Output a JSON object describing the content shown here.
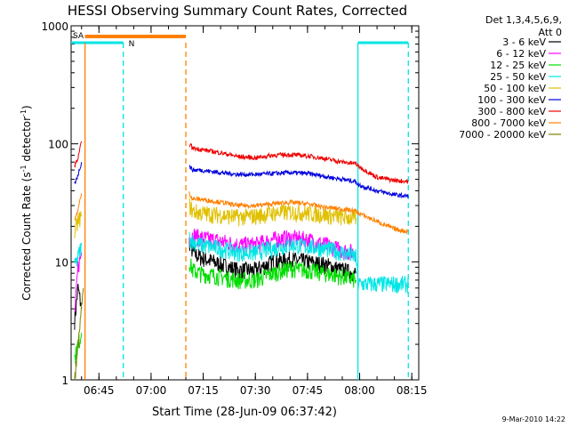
{
  "chart_data": {
    "type": "line",
    "title": "HESSI Observing Summary Count Rates, Corrected",
    "xlabel": "Start Time (28-Jun-09 06:37:42)",
    "ylabel_main": "Corrected Count Rate (s",
    "ylabel_sup1": "-1",
    "ylabel_mid": " detector",
    "ylabel_sup2": "-1",
    "ylabel_end": ")",
    "y_scale": "log",
    "ylim": [
      1,
      1000
    ],
    "xlim": [
      "06:37:42",
      "08:17:00"
    ],
    "x_ticks": [
      "06:45",
      "07:00",
      "07:15",
      "07:30",
      "07:45",
      "08:00",
      "08:15"
    ],
    "y_ticks": [
      "1",
      "10",
      "100",
      "1000"
    ],
    "grid": false,
    "legend_position": "right",
    "legend_header": [
      "Det 1,3,4,5,6,9,",
      "Att 0"
    ],
    "flags": {
      "saa_label": "SA",
      "night_label": "N"
    },
    "footer_date": "9-Mar-2010 14:22",
    "series": [
      {
        "name": "3 - 6 keV",
        "color": "#000000",
        "points": [
          [
            "06:38",
            3.2
          ],
          [
            "06:39",
            6
          ],
          [
            "06:40",
            4
          ],
          [
            "07:11",
            15
          ],
          [
            "07:12",
            12
          ],
          [
            "07:14",
            11
          ],
          [
            "07:20",
            9.5
          ],
          [
            "07:25",
            8.5
          ],
          [
            "07:30",
            8.5
          ],
          [
            "07:35",
            10
          ],
          [
            "07:40",
            10.5
          ],
          [
            "07:45",
            10
          ],
          [
            "07:50",
            9.5
          ],
          [
            "07:55",
            8.5
          ],
          [
            "07:59",
            8
          ]
        ]
      },
      {
        "name": "6 - 12 keV",
        "color": "#ff00ff",
        "points": [
          [
            "06:38",
            3.5
          ],
          [
            "06:39",
            9
          ],
          [
            "06:40",
            12
          ],
          [
            "07:11",
            16
          ],
          [
            "07:12",
            17
          ],
          [
            "07:14",
            16
          ],
          [
            "07:20",
            15
          ],
          [
            "07:25",
            14
          ],
          [
            "07:30",
            14
          ],
          [
            "07:35",
            15.5
          ],
          [
            "07:40",
            16
          ],
          [
            "07:45",
            15.5
          ],
          [
            "07:50",
            14
          ],
          [
            "07:55",
            12.5
          ],
          [
            "07:59",
            12
          ]
        ]
      },
      {
        "name": "12 - 25 keV",
        "color": "#00dd00",
        "points": [
          [
            "06:38",
            1.5
          ],
          [
            "06:39",
            2
          ],
          [
            "06:40",
            2.5
          ],
          [
            "07:11",
            10
          ],
          [
            "07:12",
            8.5
          ],
          [
            "07:14",
            8
          ],
          [
            "07:20",
            7.5
          ],
          [
            "07:25",
            7
          ],
          [
            "07:30",
            7
          ],
          [
            "07:35",
            8
          ],
          [
            "07:40",
            8.8
          ],
          [
            "07:45",
            8.5
          ],
          [
            "07:50",
            8
          ],
          [
            "07:55",
            7.5
          ],
          [
            "07:59",
            7
          ]
        ]
      },
      {
        "name": "25 - 50 keV",
        "color": "#00e5e5",
        "points": [
          [
            "06:38",
            9
          ],
          [
            "06:39",
            11
          ],
          [
            "06:40",
            14
          ],
          [
            "07:11",
            16
          ],
          [
            "07:12",
            15
          ],
          [
            "07:14",
            14
          ],
          [
            "07:20",
            13
          ],
          [
            "07:25",
            12
          ],
          [
            "07:30",
            12
          ],
          [
            "07:35",
            13
          ],
          [
            "07:40",
            14
          ],
          [
            "07:45",
            13.5
          ],
          [
            "07:50",
            13
          ],
          [
            "07:55",
            12
          ],
          [
            "07:59",
            11
          ],
          [
            "07:59.5",
            6.5
          ],
          [
            "08:05",
            6.5
          ],
          [
            "08:14",
            6.5
          ]
        ]
      },
      {
        "name": "50 - 100 keV",
        "color": "#e0c000",
        "points": [
          [
            "06:38",
            18
          ],
          [
            "06:39",
            22
          ],
          [
            "06:40",
            25
          ],
          [
            "07:11",
            30
          ],
          [
            "07:12",
            27
          ],
          [
            "07:14",
            26
          ],
          [
            "07:20",
            25
          ],
          [
            "07:25",
            24
          ],
          [
            "07:30",
            24.5
          ],
          [
            "07:35",
            26
          ],
          [
            "07:40",
            26.5
          ],
          [
            "07:45",
            26
          ],
          [
            "07:50",
            25
          ],
          [
            "07:55",
            24
          ],
          [
            "07:59",
            23.5
          ]
        ]
      },
      {
        "name": "100 - 300 keV",
        "color": "#0000dd",
        "points": [
          [
            "06:38",
            45
          ],
          [
            "06:39",
            55
          ],
          [
            "06:40",
            70
          ],
          [
            "07:11",
            65
          ],
          [
            "07:12",
            60
          ],
          [
            "07:14",
            60
          ],
          [
            "07:20",
            57
          ],
          [
            "07:25",
            55
          ],
          [
            "07:30",
            55
          ],
          [
            "07:35",
            56
          ],
          [
            "07:40",
            57
          ],
          [
            "07:45",
            56
          ],
          [
            "07:50",
            53
          ],
          [
            "07:55",
            50
          ],
          [
            "07:59",
            48
          ],
          [
            "07:59.5",
            45
          ],
          [
            "08:05",
            40
          ],
          [
            "08:10",
            37
          ],
          [
            "08:14",
            36
          ]
        ]
      },
      {
        "name": "300 - 800 keV",
        "color": "#ee0000",
        "points": [
          [
            "06:38",
            65
          ],
          [
            "06:39",
            75
          ],
          [
            "06:40",
            105
          ],
          [
            "07:11",
            100
          ],
          [
            "07:12",
            92
          ],
          [
            "07:14",
            90
          ],
          [
            "07:20",
            84
          ],
          [
            "07:25",
            78
          ],
          [
            "07:30",
            76
          ],
          [
            "07:35",
            80
          ],
          [
            "07:40",
            81
          ],
          [
            "07:45",
            79
          ],
          [
            "07:50",
            75
          ],
          [
            "07:55",
            70
          ],
          [
            "07:59",
            68
          ],
          [
            "07:59.5",
            65
          ],
          [
            "08:05",
            52
          ],
          [
            "08:10",
            49
          ],
          [
            "08:14",
            48
          ]
        ]
      },
      {
        "name": "800 - 7000 keV",
        "color": "#ff8000",
        "points": [
          [
            "06:38",
            22
          ],
          [
            "06:39",
            28
          ],
          [
            "06:40",
            38
          ],
          [
            "07:11",
            38
          ],
          [
            "07:12",
            34
          ],
          [
            "07:14",
            34
          ],
          [
            "07:20",
            32
          ],
          [
            "07:25",
            30
          ],
          [
            "07:30",
            30
          ],
          [
            "07:35",
            31
          ],
          [
            "07:40",
            32
          ],
          [
            "07:45",
            31
          ],
          [
            "07:50",
            29
          ],
          [
            "07:55",
            28
          ],
          [
            "07:59",
            27
          ],
          [
            "07:59.5",
            26
          ],
          [
            "08:05",
            22
          ],
          [
            "08:10",
            19
          ],
          [
            "08:14",
            18
          ]
        ]
      },
      {
        "name": "7000 - 20000 keV",
        "color": "#808000",
        "points": [
          [
            "06:38",
            1
          ],
          [
            "06:39",
            2
          ],
          [
            "06:40",
            4
          ],
          [
            "06:40.5",
            6
          ]
        ]
      }
    ]
  }
}
